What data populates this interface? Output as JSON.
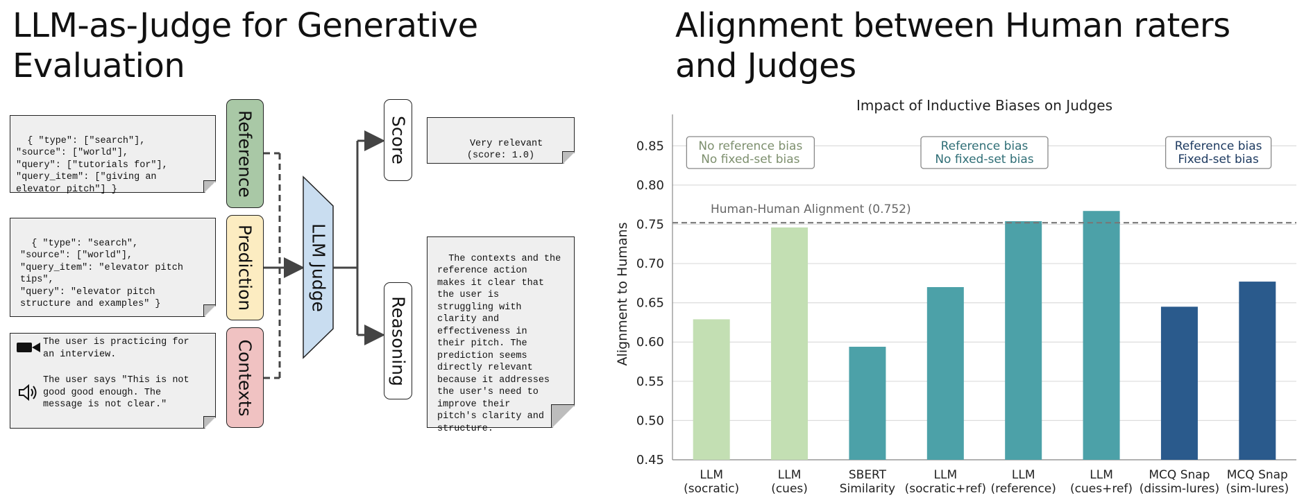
{
  "left": {
    "heading": "LLM-as-Judge for Generative Evaluation",
    "reference_json": "{ \"type\": [\"search\"],\n\"source\": [\"world\"],\n\"query\": [\"tutorials for\"],\n\"query_item\": [\"giving an\nelevator pitch\"] }",
    "prediction_json": "{ \"type\": \"search\",\n\"source\": [\"world\"],\n\"query_item\": \"elevator pitch\ntips\",\n\"query\": \"elevator pitch\nstructure and examples\" }",
    "context_video_text": "The user is practicing for\nan interview.",
    "context_audio_text": "The user says \"This is not\ngood good enough. The\nmessage is not clear.\"",
    "labels": {
      "reference": "Reference",
      "prediction": "Prediction",
      "contexts": "Contexts",
      "judge": "LLM Judge",
      "score": "Score",
      "reasoning": "Reasoning"
    },
    "score_output": "Very relevant\n(score: 1.0)",
    "reasoning_output": "The contexts and the\nreference action\nmakes it clear that\nthe user is\nstruggling with\nclarity and\neffectiveness in\ntheir pitch. The\nprediction seems\ndirectly relevant\nbecause it addresses\nthe user's need to\nimprove their\npitch's clarity and\nstructure.",
    "icons": [
      "video-camera-icon",
      "speaker-icon"
    ],
    "colors": {
      "reference": "#a9c8a6",
      "prediction": "#fcecc1",
      "contexts": "#f0c2c2",
      "judge": "#c9ddf0",
      "note_bg": "#efefef"
    }
  },
  "right": {
    "heading": "Alignment between Human raters and Judges"
  },
  "chart_data": {
    "type": "bar",
    "title": "Impact of Inductive Biases on Judges",
    "xlabel": "",
    "ylabel": "Alignment to Humans",
    "ylim": [
      0.45,
      0.89
    ],
    "yticks": [
      "0.45",
      "0.50",
      "0.55",
      "0.60",
      "0.65",
      "0.70",
      "0.75",
      "0.80",
      "0.85"
    ],
    "grid": true,
    "categories": [
      "LLM\n(socratic)",
      "LLM\n(cues)",
      "SBERT\nSimilarity",
      "LLM\n(socratic+ref)",
      "LLM\n(reference)",
      "LLM\n(cues+ref)",
      "MCQ Snap\n(dissim-lures)",
      "MCQ Snap\n(sim-lures)"
    ],
    "values": [
      0.629,
      0.746,
      0.594,
      0.67,
      0.754,
      0.767,
      0.645,
      0.677
    ],
    "bar_colors": [
      "#c3dfb3",
      "#c3dfb3",
      "#4ca1a8",
      "#4ca1a8",
      "#4ca1a8",
      "#4ca1a8",
      "#2a5a8c",
      "#2a5a8c"
    ],
    "reference_line": {
      "value": 0.752,
      "label": "Human-Human Alignment (0.752)"
    },
    "group_annotations": [
      {
        "text": "No reference bias\nNo fixed-set bias",
        "color": "#7d8f6e"
      },
      {
        "text": "Reference bias\nNo fixed-set bias",
        "color": "#2f6e76"
      },
      {
        "text": "Reference bias\nFixed-set bias",
        "color": "#1d3a60"
      }
    ]
  }
}
